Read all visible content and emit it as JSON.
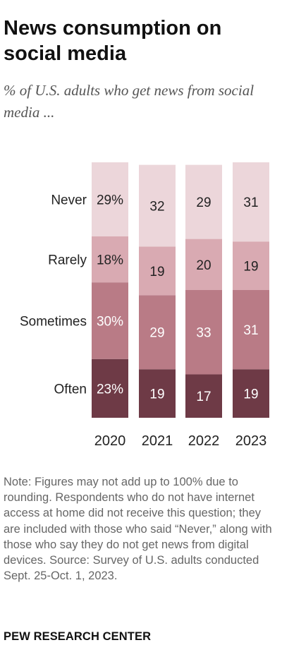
{
  "title": "News consumption on social media",
  "subtitle": "% of U.S. adults who get news from social media ...",
  "chart_data": {
    "type": "bar",
    "stacked": true,
    "orientation": "vertical",
    "categories": [
      "2020",
      "2021",
      "2022",
      "2023"
    ],
    "series": [
      {
        "name": "Often",
        "values": [
          23,
          19,
          17,
          19
        ],
        "labels": [
          "23%",
          "19",
          "17",
          "19"
        ],
        "color": "#6e3a46",
        "label_color": "#ffffff"
      },
      {
        "name": "Sometimes",
        "values": [
          30,
          29,
          33,
          31
        ],
        "labels": [
          "30%",
          "29",
          "33",
          "31"
        ],
        "color": "#b97b86",
        "label_color": "#ffffff"
      },
      {
        "name": "Rarely",
        "values": [
          18,
          19,
          20,
          19
        ],
        "labels": [
          "18%",
          "19",
          "20",
          "19"
        ],
        "color": "#d9aab2",
        "label_color": "#222222"
      },
      {
        "name": "Never",
        "values": [
          29,
          32,
          29,
          31
        ],
        "labels": [
          "29%",
          "32",
          "29",
          "31"
        ],
        "color": "#ecd6da",
        "label_color": "#222222"
      }
    ],
    "legend_placement": "inline-left"
  },
  "note": "Note: Figures may not add up to 100% due to rounding. Respondents who do not have internet access at home did not receive this question; they are included with those who said “Never,” along with those who say they do not get news from digital devices.",
  "source": "Source: Survey of U.S. adults conducted Sept. 25-Oct. 1, 2023.",
  "footer": "PEW RESEARCH CENTER"
}
